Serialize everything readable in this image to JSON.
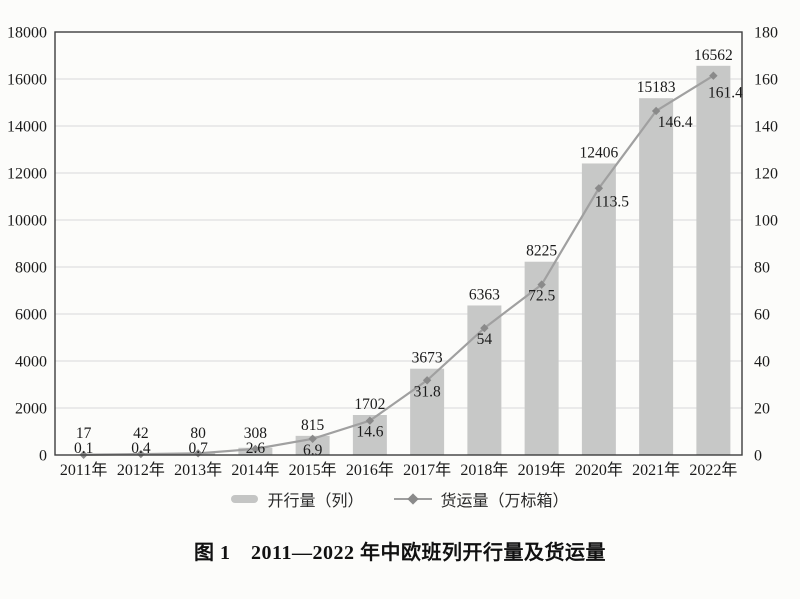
{
  "page": {
    "background": "#fcfcfa"
  },
  "figure": {
    "caption": "图 1　2011—2022 年中欧班列开行量及货运量"
  },
  "colors": {
    "bar": "#c7c8c7",
    "line": "#a0a0a0",
    "marker": "#8a8a8a",
    "grid": "#e0e0e0",
    "border": "#3e3e3e",
    "text": "#1b1b1b"
  },
  "chart_data": {
    "type": "bar+line",
    "title": "图 1　2011—2022 年中欧班列开行量及货运量",
    "categories": [
      "2011年",
      "2012年",
      "2013年",
      "2014年",
      "2015年",
      "2016年",
      "2017年",
      "2018年",
      "2019年",
      "2020年",
      "2021年",
      "2022年"
    ],
    "series": [
      {
        "name": "开行量（列）",
        "type": "bar",
        "axis": "left",
        "values": [
          17,
          42,
          80,
          308,
          815,
          1702,
          3673,
          6363,
          8225,
          12406,
          15183,
          16562
        ]
      },
      {
        "name": "货运量（万标箱）",
        "type": "line",
        "axis": "right",
        "values": [
          0.1,
          0.4,
          0.7,
          2.6,
          6.9,
          14.6,
          31.8,
          54,
          72.5,
          113.5,
          146.4,
          161.4
        ]
      }
    ],
    "left_axis": {
      "min": 0,
      "max": 18000,
      "step": 2000,
      "tick_labels": [
        "18000",
        "16000",
        "14000",
        "12000",
        "10000",
        "8000",
        "6000",
        "4000",
        "2000",
        "0"
      ]
    },
    "right_axis": {
      "min": 0,
      "max": 180,
      "step": 20,
      "tick_labels": [
        "180",
        "160",
        "140",
        "120",
        "100",
        "80",
        "60",
        "40",
        "20",
        "0"
      ]
    },
    "grid": true,
    "data_labels": true,
    "legend_position": "bottom"
  }
}
